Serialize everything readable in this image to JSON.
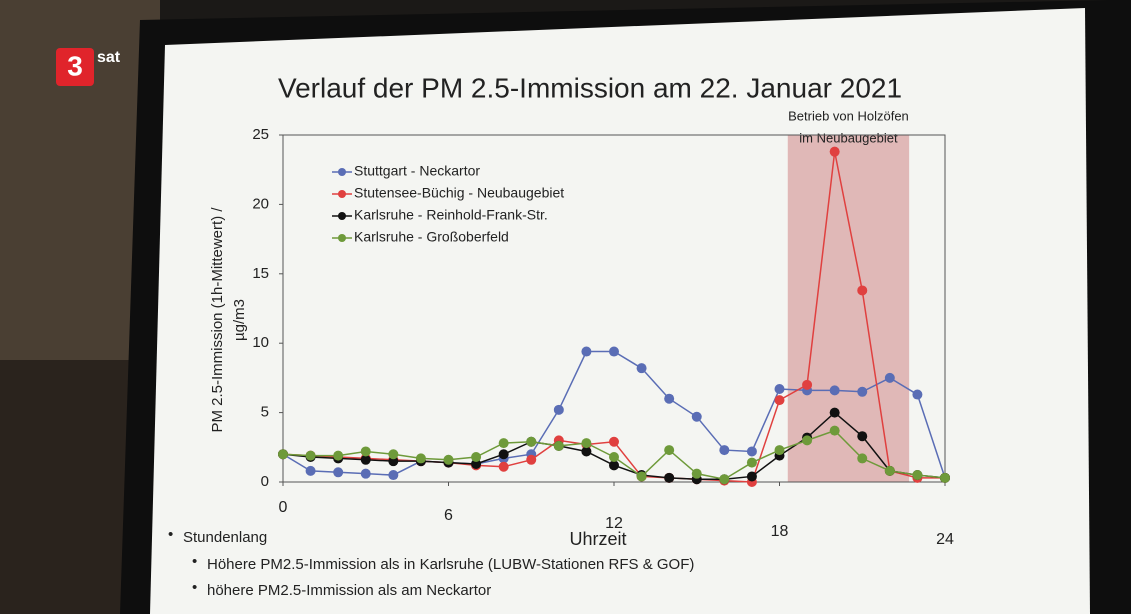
{
  "logo": {
    "mark": "3",
    "text": "sat"
  },
  "chart_data": {
    "type": "line",
    "title": "Verlauf der PM 2.5-Immission am 22. Januar 2021",
    "y_label": [
      "PM 2.5-Immission (1h-Mittewert) /",
      "µg/m3"
    ],
    "x_label": "Uhrzeit",
    "x": [
      0,
      1,
      2,
      3,
      4,
      5,
      6,
      7,
      8,
      9,
      10,
      11,
      12,
      13,
      14,
      15,
      16,
      17,
      18,
      19,
      20,
      21,
      22,
      23,
      24
    ],
    "xlim": [
      0,
      24
    ],
    "xticks": [
      0,
      6,
      12,
      18,
      24
    ],
    "ylim": [
      0,
      25
    ],
    "yticks": [
      0,
      5,
      10,
      15,
      20,
      25
    ],
    "highlight": {
      "label": [
        "Betrieb von Holzöfen",
        "im Neubaugebiet"
      ],
      "xrange": [
        18.3,
        22.7
      ],
      "color": "#d9a3a3"
    },
    "series": [
      {
        "name": "Stuttgart - Neckartor",
        "color": "#5a6db5",
        "values": [
          2.0,
          0.8,
          0.7,
          0.6,
          0.5,
          1.5,
          1.4,
          1.3,
          1.7,
          2.0,
          5.2,
          9.4,
          9.4,
          8.2,
          6.0,
          4.7,
          2.3,
          2.2,
          6.7,
          6.6,
          6.6,
          6.5,
          7.5,
          6.3,
          0.3
        ]
      },
      {
        "name": "Stutensee-Büchig - Neubaugebiet",
        "color": "#e0403f",
        "values": [
          2.0,
          1.9,
          1.8,
          1.7,
          1.6,
          1.5,
          1.4,
          1.2,
          1.1,
          1.6,
          3.0,
          2.7,
          2.9,
          0.4,
          0.3,
          0.2,
          0.1,
          0.0,
          5.9,
          7.0,
          23.8,
          13.8,
          0.8,
          0.3,
          0.3
        ]
      },
      {
        "name": "Karlsruhe - Reinhold-Frank-Str.",
        "color": "#111111",
        "values": [
          2.0,
          1.8,
          1.7,
          1.6,
          1.5,
          1.5,
          1.4,
          1.3,
          2.0,
          2.9,
          2.6,
          2.2,
          1.2,
          0.5,
          0.3,
          0.2,
          0.2,
          0.4,
          1.9,
          3.2,
          5.0,
          3.3,
          0.8,
          0.5,
          0.3
        ]
      },
      {
        "name": "Karlsruhe - Großoberfeld",
        "color": "#6e9a3a",
        "values": [
          2.0,
          1.9,
          1.9,
          2.2,
          2.0,
          1.7,
          1.6,
          1.8,
          2.8,
          2.9,
          2.6,
          2.8,
          1.8,
          0.4,
          2.3,
          0.6,
          0.2,
          1.4,
          2.3,
          3.0,
          3.7,
          1.7,
          0.8,
          0.5,
          0.3
        ]
      }
    ]
  },
  "bullets": [
    "Stundenlang",
    "Höhere PM2.5-Immission als in Karlsruhe (LUBW-Stationen RFS & GOF)",
    "höhere PM2.5-Immission als am Neckartor"
  ]
}
